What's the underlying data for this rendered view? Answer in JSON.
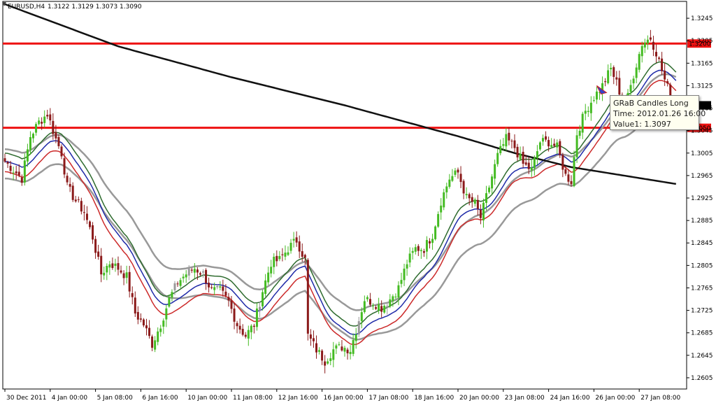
{
  "header": {
    "symbol": "EURUSD,H4",
    "ohlc": "1.3122 1.3129 1.3073 1.3090"
  },
  "tooltip": {
    "title": "GRaB Candles Long",
    "time": "Time: 2012.01.26 16:00",
    "value": "Value1: 1.3097"
  },
  "colors": {
    "bull": "#44bb22",
    "bear": "#8b1a1a",
    "neutral": "#999999",
    "sma": "#111111",
    "ema_green": "#2e6b2e",
    "ema_blue": "#1f2aa8",
    "ema_red": "#cc2a2a",
    "ema_gray": "#999999",
    "hline": "#ee1111"
  },
  "chart_data": {
    "type": "candlestick",
    "ylim": [
      1.2585,
      1.3275
    ],
    "y_ticks": [
      "1.3245",
      "1.3205",
      "1.3165",
      "1.3125",
      "1.3085",
      "1.3045",
      "1.3005",
      "1.2965",
      "1.2925",
      "1.2885",
      "1.2845",
      "1.2805",
      "1.2765",
      "1.2725",
      "1.2685",
      "1.2645",
      "1.2605"
    ],
    "x_ticks": [
      {
        "i": 0,
        "label": "30 Dec 2011"
      },
      {
        "i": 16,
        "label": "4 Jan 00:00"
      },
      {
        "i": 32,
        "label": "5 Jan 08:00"
      },
      {
        "i": 48,
        "label": "6 Jan 16:00"
      },
      {
        "i": 64,
        "label": "10 Jan 00:00"
      },
      {
        "i": 80,
        "label": "11 Jan 08:00"
      },
      {
        "i": 96,
        "label": "12 Jan 16:00"
      },
      {
        "i": 112,
        "label": "16 Jan 00:00"
      },
      {
        "i": 128,
        "label": "17 Jan 08:00"
      },
      {
        "i": 144,
        "label": "18 Jan 16:00"
      },
      {
        "i": 160,
        "label": "20 Jan 00:00"
      },
      {
        "i": 176,
        "label": "23 Jan 08:00"
      },
      {
        "i": 192,
        "label": "24 Jan 16:00"
      },
      {
        "i": 208,
        "label": "26 Jan 00:00"
      },
      {
        "i": 224,
        "label": "27 Jan 08:00"
      }
    ],
    "bar_count": 238,
    "hlines": [
      {
        "value": 1.32,
        "label": "1.3200"
      },
      {
        "value": 1.305,
        "label": "1.3050"
      }
    ],
    "current_price": {
      "value": 1.309,
      "label": "1.3090"
    },
    "anchor_closes": [
      [
        0,
        1.299
      ],
      [
        3,
        1.2975
      ],
      [
        6,
        1.296
      ],
      [
        9,
        1.3035
      ],
      [
        12,
        1.306
      ],
      [
        15,
        1.3075
      ],
      [
        18,
        1.303
      ],
      [
        20,
        1.3005
      ],
      [
        22,
        1.2945
      ],
      [
        25,
        1.292
      ],
      [
        28,
        1.29
      ],
      [
        31,
        1.2855
      ],
      [
        34,
        1.279
      ],
      [
        37,
        1.281
      ],
      [
        40,
        1.28
      ],
      [
        43,
        1.2785
      ],
      [
        46,
        1.272
      ],
      [
        49,
        1.27
      ],
      [
        52,
        1.2665
      ],
      [
        55,
        1.27
      ],
      [
        58,
        1.2745
      ],
      [
        61,
        1.2775
      ],
      [
        64,
        1.279
      ],
      [
        67,
        1.28
      ],
      [
        70,
        1.279
      ],
      [
        73,
        1.276
      ],
      [
        76,
        1.276
      ],
      [
        79,
        1.274
      ],
      [
        82,
        1.27
      ],
      [
        85,
        1.268
      ],
      [
        88,
        1.27
      ],
      [
        91,
        1.276
      ],
      [
        94,
        1.281
      ],
      [
        97,
        1.2815
      ],
      [
        100,
        1.2835
      ],
      [
        103,
        1.285
      ],
      [
        106,
        1.2815
      ],
      [
        107,
        1.268
      ],
      [
        110,
        1.2655
      ],
      [
        113,
        1.2635
      ],
      [
        116,
        1.2655
      ],
      [
        119,
        1.266
      ],
      [
        122,
        1.2655
      ],
      [
        124,
        1.269
      ],
      [
        127,
        1.2745
      ],
      [
        130,
        1.274
      ],
      [
        133,
        1.273
      ],
      [
        136,
        1.2745
      ],
      [
        139,
        1.2765
      ],
      [
        142,
        1.281
      ],
      [
        145,
        1.2835
      ],
      [
        148,
        1.2835
      ],
      [
        151,
        1.286
      ],
      [
        154,
        1.292
      ],
      [
        157,
        1.296
      ],
      [
        160,
        1.297
      ],
      [
        163,
        1.2925
      ],
      [
        166,
        1.2915
      ],
      [
        168,
        1.289
      ],
      [
        171,
        1.2945
      ],
      [
        174,
        1.3
      ],
      [
        177,
        1.303
      ],
      [
        180,
        1.3015
      ],
      [
        183,
        1.2985
      ],
      [
        186,
        1.2975
      ],
      [
        189,
        1.3025
      ],
      [
        192,
        1.3025
      ],
      [
        195,
        1.3015
      ],
      [
        198,
        1.2965
      ],
      [
        200,
        1.2955
      ],
      [
        202,
        1.304
      ],
      [
        205,
        1.308
      ],
      [
        208,
        1.3105
      ],
      [
        211,
        1.3125
      ],
      [
        214,
        1.3155
      ],
      [
        216,
        1.313
      ],
      [
        219,
        1.3085
      ],
      [
        222,
        1.3145
      ],
      [
        225,
        1.32
      ],
      [
        228,
        1.321
      ],
      [
        230,
        1.3185
      ],
      [
        233,
        1.3135
      ],
      [
        236,
        1.3095
      ],
      [
        237,
        1.309
      ]
    ],
    "sma_long": [
      [
        0,
        1.327
      ],
      [
        40,
        1.3195
      ],
      [
        80,
        1.314
      ],
      [
        120,
        1.309
      ],
      [
        160,
        1.3035
      ],
      [
        180,
        1.3005
      ],
      [
        200,
        1.298
      ],
      [
        237,
        1.295
      ]
    ],
    "grab_candle_indices": [
      9,
      12,
      15,
      95,
      97,
      99,
      101,
      103,
      105,
      127,
      136,
      139,
      142,
      145,
      148,
      151,
      154,
      157,
      171,
      174,
      177,
      202,
      205,
      208,
      211,
      214,
      222,
      225,
      228
    ]
  }
}
